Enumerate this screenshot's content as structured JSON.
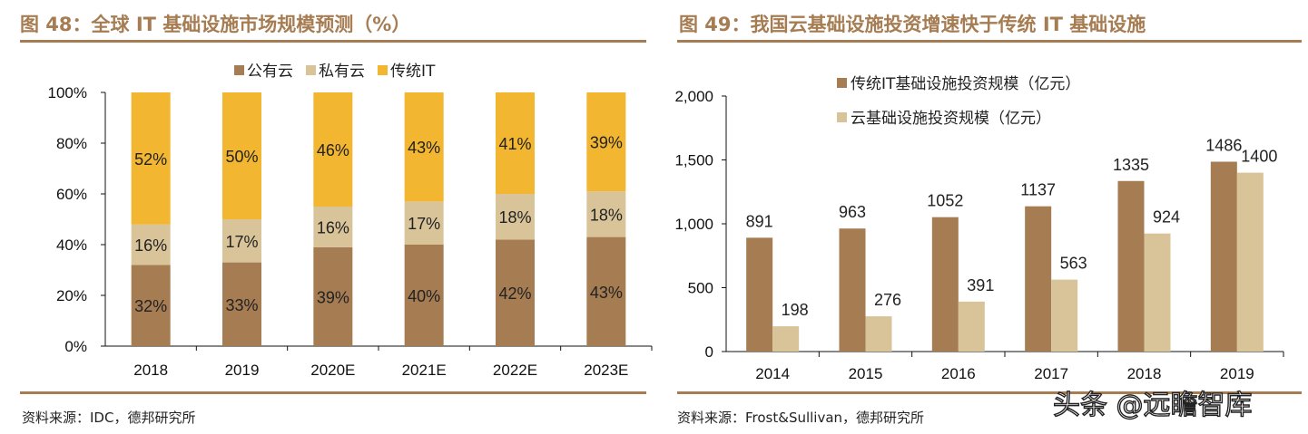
{
  "colors": {
    "title": "#A67C52",
    "rule": "#A67C52",
    "public_cloud": "#A67C52",
    "private_cloud": "#D9C49A",
    "traditional_it": "#F2B630",
    "cloud_invest": "#D9C49A",
    "it_invest": "#A67C52"
  },
  "chart_data": [
    {
      "type": "bar",
      "stacked": true,
      "title": "图 48：全球 IT 基础设施市场规模预测（%）",
      "source": "资料来源：IDC，德邦研究所",
      "categories": [
        "2018",
        "2019",
        "2020E",
        "2021E",
        "2022E",
        "2023E"
      ],
      "series": [
        {
          "name": "公有云",
          "values": [
            32,
            33,
            39,
            40,
            42,
            43
          ],
          "labels": [
            "32%",
            "33%",
            "39%",
            "40%",
            "42%",
            "43%"
          ]
        },
        {
          "name": "私有云",
          "values": [
            16,
            17,
            16,
            17,
            18,
            18
          ],
          "labels": [
            "16%",
            "17%",
            "16%",
            "17%",
            "18%",
            "18%"
          ]
        },
        {
          "name": "传统IT",
          "values": [
            52,
            50,
            46,
            43,
            41,
            39
          ],
          "labels": [
            "52%",
            "50%",
            "46%",
            "43%",
            "41%",
            "39%"
          ]
        }
      ],
      "ylim": [
        0,
        100
      ],
      "yticks": [
        "0%",
        "20%",
        "40%",
        "60%",
        "80%",
        "100%"
      ],
      "legend": "top-center"
    },
    {
      "type": "bar",
      "stacked": false,
      "title": "图 49：我国云基础设施投资增速快于传统 IT 基础设施",
      "source": "资料来源：Frost&Sullivan，德邦研究所",
      "categories": [
        "2014",
        "2015",
        "2016",
        "2017",
        "2018",
        "2019"
      ],
      "series": [
        {
          "name": "传统IT基础设施投资规模（亿元）",
          "values": [
            891,
            963,
            1052,
            1137,
            1335,
            1486
          ],
          "labels": [
            "891",
            "963",
            "1052",
            "1137",
            "1335",
            "1486"
          ]
        },
        {
          "name": "云基础设施投资规模（亿元）",
          "values": [
            198,
            276,
            391,
            563,
            924,
            1400
          ],
          "labels": [
            "198",
            "276",
            "391",
            "563",
            "924",
            "1400"
          ]
        }
      ],
      "ylim": [
        0,
        2000
      ],
      "yticks": [
        "0",
        "500",
        "1,000",
        "1,500",
        "2,000"
      ],
      "legend": "top-left"
    }
  ],
  "watermark": "头条 @远瞻智库"
}
